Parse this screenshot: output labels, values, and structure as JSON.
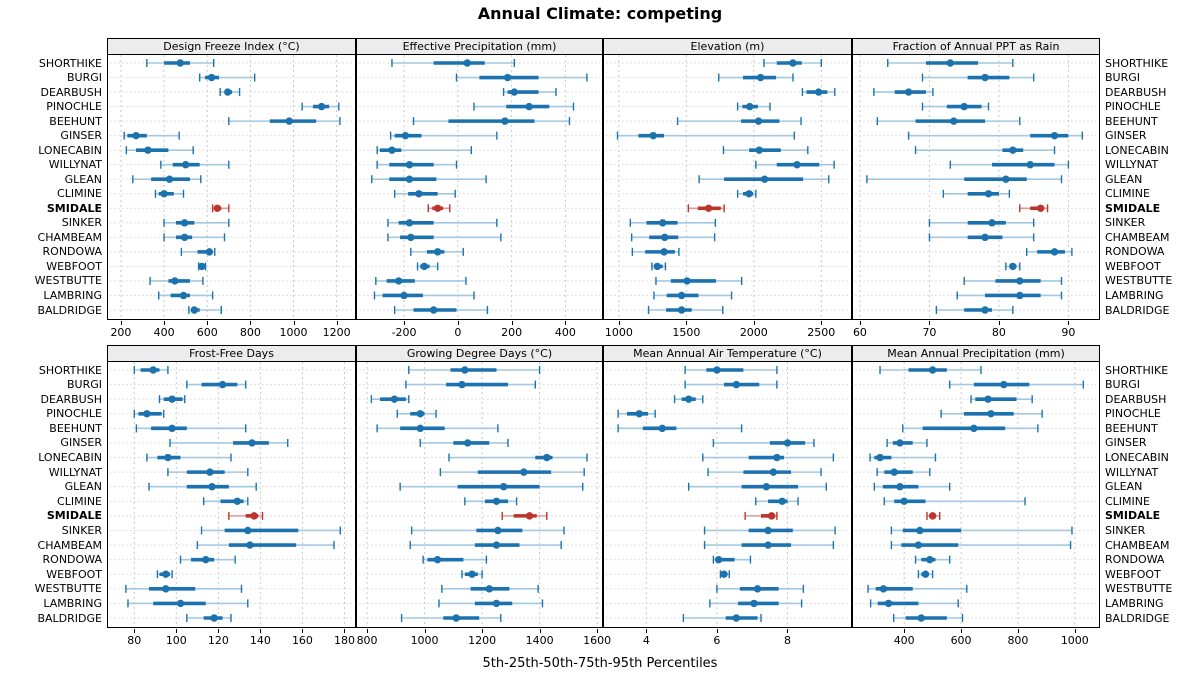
{
  "chart_data": {
    "type": "interval-dotplot",
    "title": "Annual Climate: competing",
    "xlabel": "5th-25th-50th-75th-95th Percentiles",
    "legend_position": "none",
    "grid": true,
    "sites": [
      "SHORTHIKE",
      "BURGI",
      "DEARBUSH",
      "PINOCHLE",
      "BEEHUNT",
      "GINSER",
      "LONECABIN",
      "WILLYNAT",
      "GLEAN",
      "CLIMINE",
      "SMIDALE",
      "SINKER",
      "CHAMBEAM",
      "RONDOWA",
      "WEBFOOT",
      "WESTBUTTE",
      "LAMBRING",
      "BALDRIDGE"
    ],
    "highlight_site": "SMIDALE",
    "colors": {
      "main": "#1c72ae",
      "light": "#a3c8e2",
      "highlight": "#bb352c",
      "highlight_light": "#d99b95",
      "strip_bg": "#ececec",
      "gridline": "#c8c8c8",
      "border": "#000000"
    },
    "percentiles": [
      5,
      25,
      50,
      75,
      95
    ],
    "panels": [
      {
        "title": "Design Freeze Index (°C)",
        "ticks": [
          200,
          400,
          600,
          800,
          1000,
          1200
        ],
        "range": [
          140,
          1285
        ],
        "values": [
          [
            320,
            400,
            475,
            520,
            630
          ],
          [
            565,
            590,
            620,
            655,
            820
          ],
          [
            660,
            680,
            695,
            715,
            750
          ],
          [
            1040,
            1090,
            1130,
            1165,
            1210
          ],
          [
            700,
            890,
            980,
            1105,
            1215
          ],
          [
            215,
            230,
            270,
            320,
            470
          ],
          [
            225,
            270,
            325,
            420,
            535
          ],
          [
            385,
            440,
            500,
            565,
            700
          ],
          [
            255,
            340,
            425,
            520,
            570
          ],
          [
            360,
            375,
            400,
            445,
            490
          ],
          [
            625,
            635,
            647,
            665,
            700
          ],
          [
            400,
            455,
            495,
            540,
            700
          ],
          [
            400,
            455,
            495,
            530,
            680
          ],
          [
            480,
            555,
            610,
            625,
            635
          ],
          [
            560,
            568,
            575,
            582,
            592
          ],
          [
            335,
            420,
            450,
            520,
            580
          ],
          [
            375,
            430,
            490,
            520,
            625
          ],
          [
            515,
            525,
            540,
            565,
            665
          ]
        ]
      },
      {
        "title": "Effective Precipitation (mm)",
        "ticks": [
          -200,
          0,
          200,
          400
        ],
        "range": [
          -375,
          536
        ],
        "values": [
          [
            -245,
            -90,
            35,
            100,
            210
          ],
          [
            -5,
            80,
            185,
            300,
            480
          ],
          [
            170,
            185,
            210,
            300,
            365
          ],
          [
            60,
            180,
            265,
            340,
            430
          ],
          [
            -165,
            -35,
            175,
            285,
            415
          ],
          [
            -250,
            -235,
            -195,
            -135,
            145
          ],
          [
            -300,
            -290,
            -245,
            -210,
            50
          ],
          [
            -300,
            -255,
            -180,
            -90,
            -5
          ],
          [
            -320,
            -255,
            -180,
            -80,
            105
          ],
          [
            -235,
            -185,
            -145,
            -75,
            -10
          ],
          [
            -110,
            -95,
            -75,
            -55,
            -30
          ],
          [
            -260,
            -220,
            -180,
            -90,
            145
          ],
          [
            -260,
            -215,
            -175,
            -90,
            160
          ],
          [
            -175,
            -115,
            -75,
            -50,
            20
          ],
          [
            -150,
            -140,
            -125,
            -105,
            -75
          ],
          [
            -305,
            -265,
            -220,
            -160,
            30
          ],
          [
            -310,
            -280,
            -200,
            -130,
            60
          ],
          [
            -235,
            -165,
            -90,
            -5,
            110
          ]
        ]
      },
      {
        "title": "Elevation (m)",
        "ticks": [
          1000,
          1500,
          2000,
          2500
        ],
        "range": [
          890,
          2720
        ],
        "values": [
          [
            2075,
            2170,
            2290,
            2355,
            2500
          ],
          [
            1740,
            1920,
            2050,
            2165,
            2290
          ],
          [
            2360,
            2390,
            2480,
            2545,
            2600
          ],
          [
            1880,
            1915,
            1970,
            2030,
            2120
          ],
          [
            1435,
            1905,
            2035,
            2190,
            2350
          ],
          [
            990,
            1145,
            1255,
            1335,
            2300
          ],
          [
            1775,
            1965,
            2040,
            2200,
            2400
          ],
          [
            2015,
            2170,
            2320,
            2485,
            2595
          ],
          [
            1595,
            1780,
            2080,
            2365,
            2555
          ],
          [
            1880,
            1920,
            1965,
            1995,
            2015
          ],
          [
            1515,
            1585,
            1665,
            1755,
            1780
          ],
          [
            1085,
            1205,
            1325,
            1435,
            1715
          ],
          [
            1095,
            1225,
            1340,
            1440,
            1710
          ],
          [
            1100,
            1195,
            1335,
            1415,
            1445
          ],
          [
            1245,
            1260,
            1285,
            1325,
            1345
          ],
          [
            1275,
            1385,
            1505,
            1720,
            1910
          ],
          [
            1260,
            1355,
            1465,
            1590,
            1835
          ],
          [
            1220,
            1350,
            1465,
            1540,
            1770
          ]
        ]
      },
      {
        "title": "Fraction of Annual PPT as Rain",
        "ticks": [
          60,
          70,
          80,
          90
        ],
        "range": [
          59,
          94.4
        ],
        "values": [
          [
            64,
            69.5,
            73,
            77,
            82
          ],
          [
            69,
            75.5,
            78,
            81.5,
            85
          ],
          [
            62,
            65,
            67,
            69.5,
            70.5
          ],
          [
            69,
            72.5,
            75,
            77.5,
            78.5
          ],
          [
            62.5,
            68,
            73.5,
            78,
            83
          ],
          [
            67,
            84.5,
            88,
            90,
            92
          ],
          [
            68,
            80.5,
            82,
            83.5,
            88
          ],
          [
            73,
            79,
            84.5,
            88,
            90
          ],
          [
            61,
            75,
            81,
            84,
            89
          ],
          [
            72,
            75.5,
            78.5,
            80,
            81.5
          ],
          [
            83,
            84.5,
            86,
            86.5,
            87
          ],
          [
            70,
            75.5,
            79,
            81,
            85
          ],
          [
            70,
            75.5,
            78,
            80.5,
            85
          ],
          [
            84,
            85.5,
            88,
            89.5,
            90.5
          ],
          [
            81,
            81.5,
            82,
            82.5,
            83
          ],
          [
            75,
            79.5,
            83,
            86,
            89
          ],
          [
            74,
            78,
            83,
            86,
            89
          ],
          [
            71,
            75,
            78,
            79,
            82
          ]
        ]
      },
      {
        "title": "Frost-Free Days",
        "ticks": [
          80,
          100,
          120,
          140,
          160,
          180
        ],
        "range": [
          67.5,
          185
        ],
        "values": [
          [
            80,
            83,
            89,
            92,
            96
          ],
          [
            105,
            112,
            122,
            129,
            133
          ],
          [
            92,
            94,
            98,
            103,
            104
          ],
          [
            80,
            82,
            86,
            93,
            94
          ],
          [
            81,
            88,
            98,
            105,
            133
          ],
          [
            97,
            127,
            136,
            144,
            153
          ],
          [
            86,
            91,
            96,
            102,
            126
          ],
          [
            96,
            105,
            116,
            123,
            134
          ],
          [
            87,
            105,
            117,
            125,
            138
          ],
          [
            113,
            121,
            129,
            132,
            134
          ],
          [
            125,
            133,
            137,
            139,
            141
          ],
          [
            112,
            123,
            134,
            158,
            178
          ],
          [
            110,
            125,
            135,
            157,
            175
          ],
          [
            102,
            107,
            114,
            118,
            128
          ],
          [
            91,
            92,
            95,
            97,
            98
          ],
          [
            76,
            87,
            95,
            109,
            131
          ],
          [
            77,
            89,
            102,
            114,
            134
          ],
          [
            105,
            113,
            118,
            122,
            126
          ]
        ]
      },
      {
        "title": "Growing Degree Days (°C)",
        "ticks": [
          800,
          1000,
          1200,
          1400,
          1600
        ],
        "range": [
          765,
          1617
        ],
        "values": [
          [
            945,
            1090,
            1140,
            1250,
            1400
          ],
          [
            935,
            1075,
            1130,
            1290,
            1385
          ],
          [
            815,
            845,
            895,
            935,
            945
          ],
          [
            905,
            950,
            985,
            1000,
            1040
          ],
          [
            835,
            915,
            985,
            1070,
            1255
          ],
          [
            985,
            1100,
            1150,
            1225,
            1290
          ],
          [
            1085,
            1385,
            1425,
            1445,
            1565
          ],
          [
            1055,
            1185,
            1345,
            1440,
            1555
          ],
          [
            915,
            1115,
            1275,
            1400,
            1550
          ],
          [
            1140,
            1210,
            1250,
            1290,
            1320
          ],
          [
            1270,
            1310,
            1365,
            1390,
            1425
          ],
          [
            955,
            1180,
            1255,
            1340,
            1485
          ],
          [
            950,
            1175,
            1250,
            1330,
            1475
          ],
          [
            995,
            1010,
            1045,
            1135,
            1215
          ],
          [
            1130,
            1140,
            1165,
            1185,
            1200
          ],
          [
            1060,
            1160,
            1225,
            1295,
            1395
          ],
          [
            1050,
            1175,
            1250,
            1305,
            1410
          ],
          [
            920,
            1065,
            1110,
            1190,
            1265
          ]
        ]
      },
      {
        "title": "Mean Annual Air Temperature (°C)",
        "ticks": [
          4,
          6,
          8
        ],
        "range": [
          2.8,
          9.8
        ],
        "values": [
          [
            5.1,
            5.7,
            6.0,
            6.75,
            7.7
          ],
          [
            5.1,
            6.2,
            6.55,
            7.2,
            7.7
          ],
          [
            4.8,
            5.0,
            5.2,
            5.4,
            5.6
          ],
          [
            3.2,
            3.45,
            3.8,
            4.05,
            4.25
          ],
          [
            3.2,
            3.9,
            4.45,
            4.85,
            6.7
          ],
          [
            5.9,
            7.5,
            8.0,
            8.5,
            8.75
          ],
          [
            5.6,
            6.9,
            7.7,
            7.9,
            9.3
          ],
          [
            5.75,
            6.75,
            7.6,
            8.1,
            8.95
          ],
          [
            5.2,
            6.7,
            7.4,
            8.3,
            9.1
          ],
          [
            7.1,
            7.45,
            7.85,
            8.0,
            8.3
          ],
          [
            6.8,
            7.25,
            7.55,
            7.65,
            7.7
          ],
          [
            5.65,
            6.9,
            7.45,
            8.15,
            9.35
          ],
          [
            5.65,
            6.7,
            7.45,
            8.1,
            9.3
          ],
          [
            5.9,
            5.95,
            6.05,
            6.5,
            6.95
          ],
          [
            6.1,
            6.15,
            6.2,
            6.3,
            6.35
          ],
          [
            6.0,
            6.65,
            7.15,
            7.75,
            8.45
          ],
          [
            5.8,
            6.6,
            7.05,
            7.75,
            8.4
          ],
          [
            5.05,
            6.25,
            6.55,
            7.15,
            7.25
          ]
        ]
      },
      {
        "title": "Mean Annual Precipitation (mm)",
        "ticks": [
          400,
          600,
          800,
          1000
        ],
        "range": [
          220,
          1085
        ],
        "values": [
          [
            315,
            415,
            500,
            550,
            670
          ],
          [
            560,
            645,
            750,
            840,
            1030
          ],
          [
            635,
            650,
            695,
            795,
            850
          ],
          [
            530,
            610,
            705,
            785,
            885
          ],
          [
            395,
            465,
            645,
            755,
            870
          ],
          [
            340,
            360,
            385,
            430,
            480
          ],
          [
            280,
            295,
            315,
            355,
            510
          ],
          [
            305,
            330,
            365,
            430,
            490
          ],
          [
            295,
            325,
            385,
            450,
            560
          ],
          [
            330,
            365,
            400,
            475,
            825
          ],
          [
            480,
            490,
            500,
            512,
            525
          ],
          [
            355,
            395,
            455,
            600,
            990
          ],
          [
            355,
            390,
            450,
            590,
            985
          ],
          [
            440,
            460,
            490,
            510,
            560
          ],
          [
            450,
            460,
            475,
            485,
            500
          ],
          [
            273,
            300,
            327,
            430,
            620
          ],
          [
            282,
            307,
            345,
            450,
            590
          ],
          [
            363,
            405,
            460,
            550,
            605
          ]
        ]
      }
    ]
  }
}
